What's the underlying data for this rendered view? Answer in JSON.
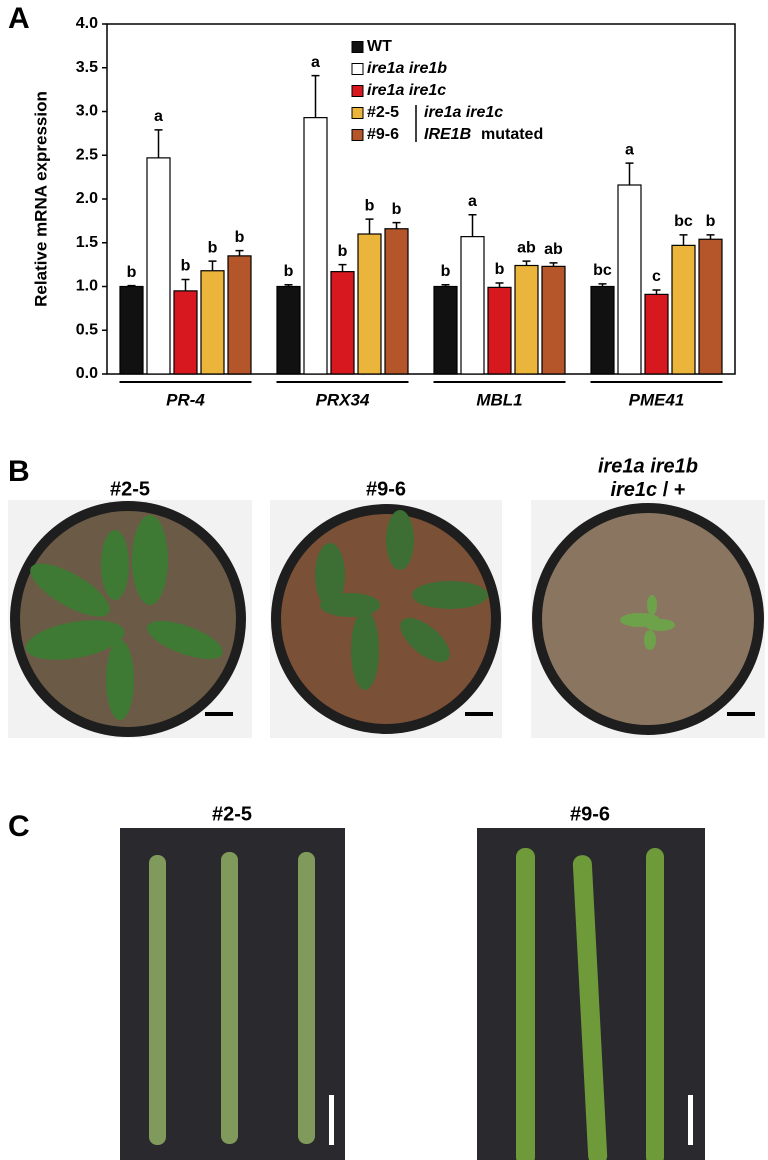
{
  "panel_labels": [
    "A",
    "B",
    "C"
  ],
  "chart_data": {
    "type": "bar",
    "ylabel": "Relative mRNA expression",
    "categories": [
      "PR-4",
      "PRX34",
      "MBL1",
      "PME41"
    ],
    "ylim": [
      0,
      4
    ],
    "yticks": [
      {
        "value": 0,
        "label": "0.0"
      },
      0.5,
      {
        "value": 1,
        "label": "1.0"
      },
      1.5,
      {
        "value": 2,
        "label": "2.0"
      },
      2.5,
      {
        "value": 3,
        "label": "3.0"
      },
      3.5,
      {
        "value": 4,
        "label": "4.0"
      }
    ],
    "series": [
      {
        "name": "WT",
        "color": "#111111",
        "values": [
          1.0,
          1.0,
          1.0,
          1.0
        ],
        "errors": [
          0.01,
          0.02,
          0.02,
          0.03
        ],
        "letters": [
          "b",
          "b",
          "b",
          "bc"
        ]
      },
      {
        "name": "ire1a ire1b",
        "color": "#ffffff",
        "values": [
          2.47,
          2.93,
          1.57,
          2.16
        ],
        "errors": [
          0.32,
          0.48,
          0.25,
          0.25
        ],
        "letters": [
          "a",
          "a",
          "a",
          "a"
        ]
      },
      {
        "name": "ire1a ire1c",
        "color": "#d7191f",
        "values": [
          0.95,
          1.17,
          0.99,
          0.91
        ],
        "errors": [
          0.13,
          0.08,
          0.05,
          0.05
        ],
        "letters": [
          "b",
          "b",
          "b",
          "c"
        ]
      },
      {
        "name": "#2-5",
        "color": "#ebb43b",
        "values": [
          1.18,
          1.6,
          1.24,
          1.47
        ],
        "errors": [
          0.11,
          0.17,
          0.05,
          0.12
        ],
        "letters": [
          "b",
          "b",
          "ab",
          "bc"
        ]
      },
      {
        "name": "#9-6",
        "color": "#b4562a",
        "values": [
          1.35,
          1.66,
          1.23,
          1.54
        ],
        "errors": [
          0.06,
          0.07,
          0.04,
          0.05
        ],
        "letters": [
          "b",
          "b",
          "ab",
          "b"
        ]
      }
    ],
    "legend_note": [
      "ire1a ire1c",
      "IRE1B",
      "mutated"
    ]
  },
  "panel_b": {
    "labels": [
      "#2-5",
      "#9-6"
    ],
    "label3": [
      "ire1a ire1b",
      "ire1c",
      "/ +"
    ]
  },
  "panel_c": {
    "labels": [
      "#2-5",
      "#9-6"
    ]
  }
}
